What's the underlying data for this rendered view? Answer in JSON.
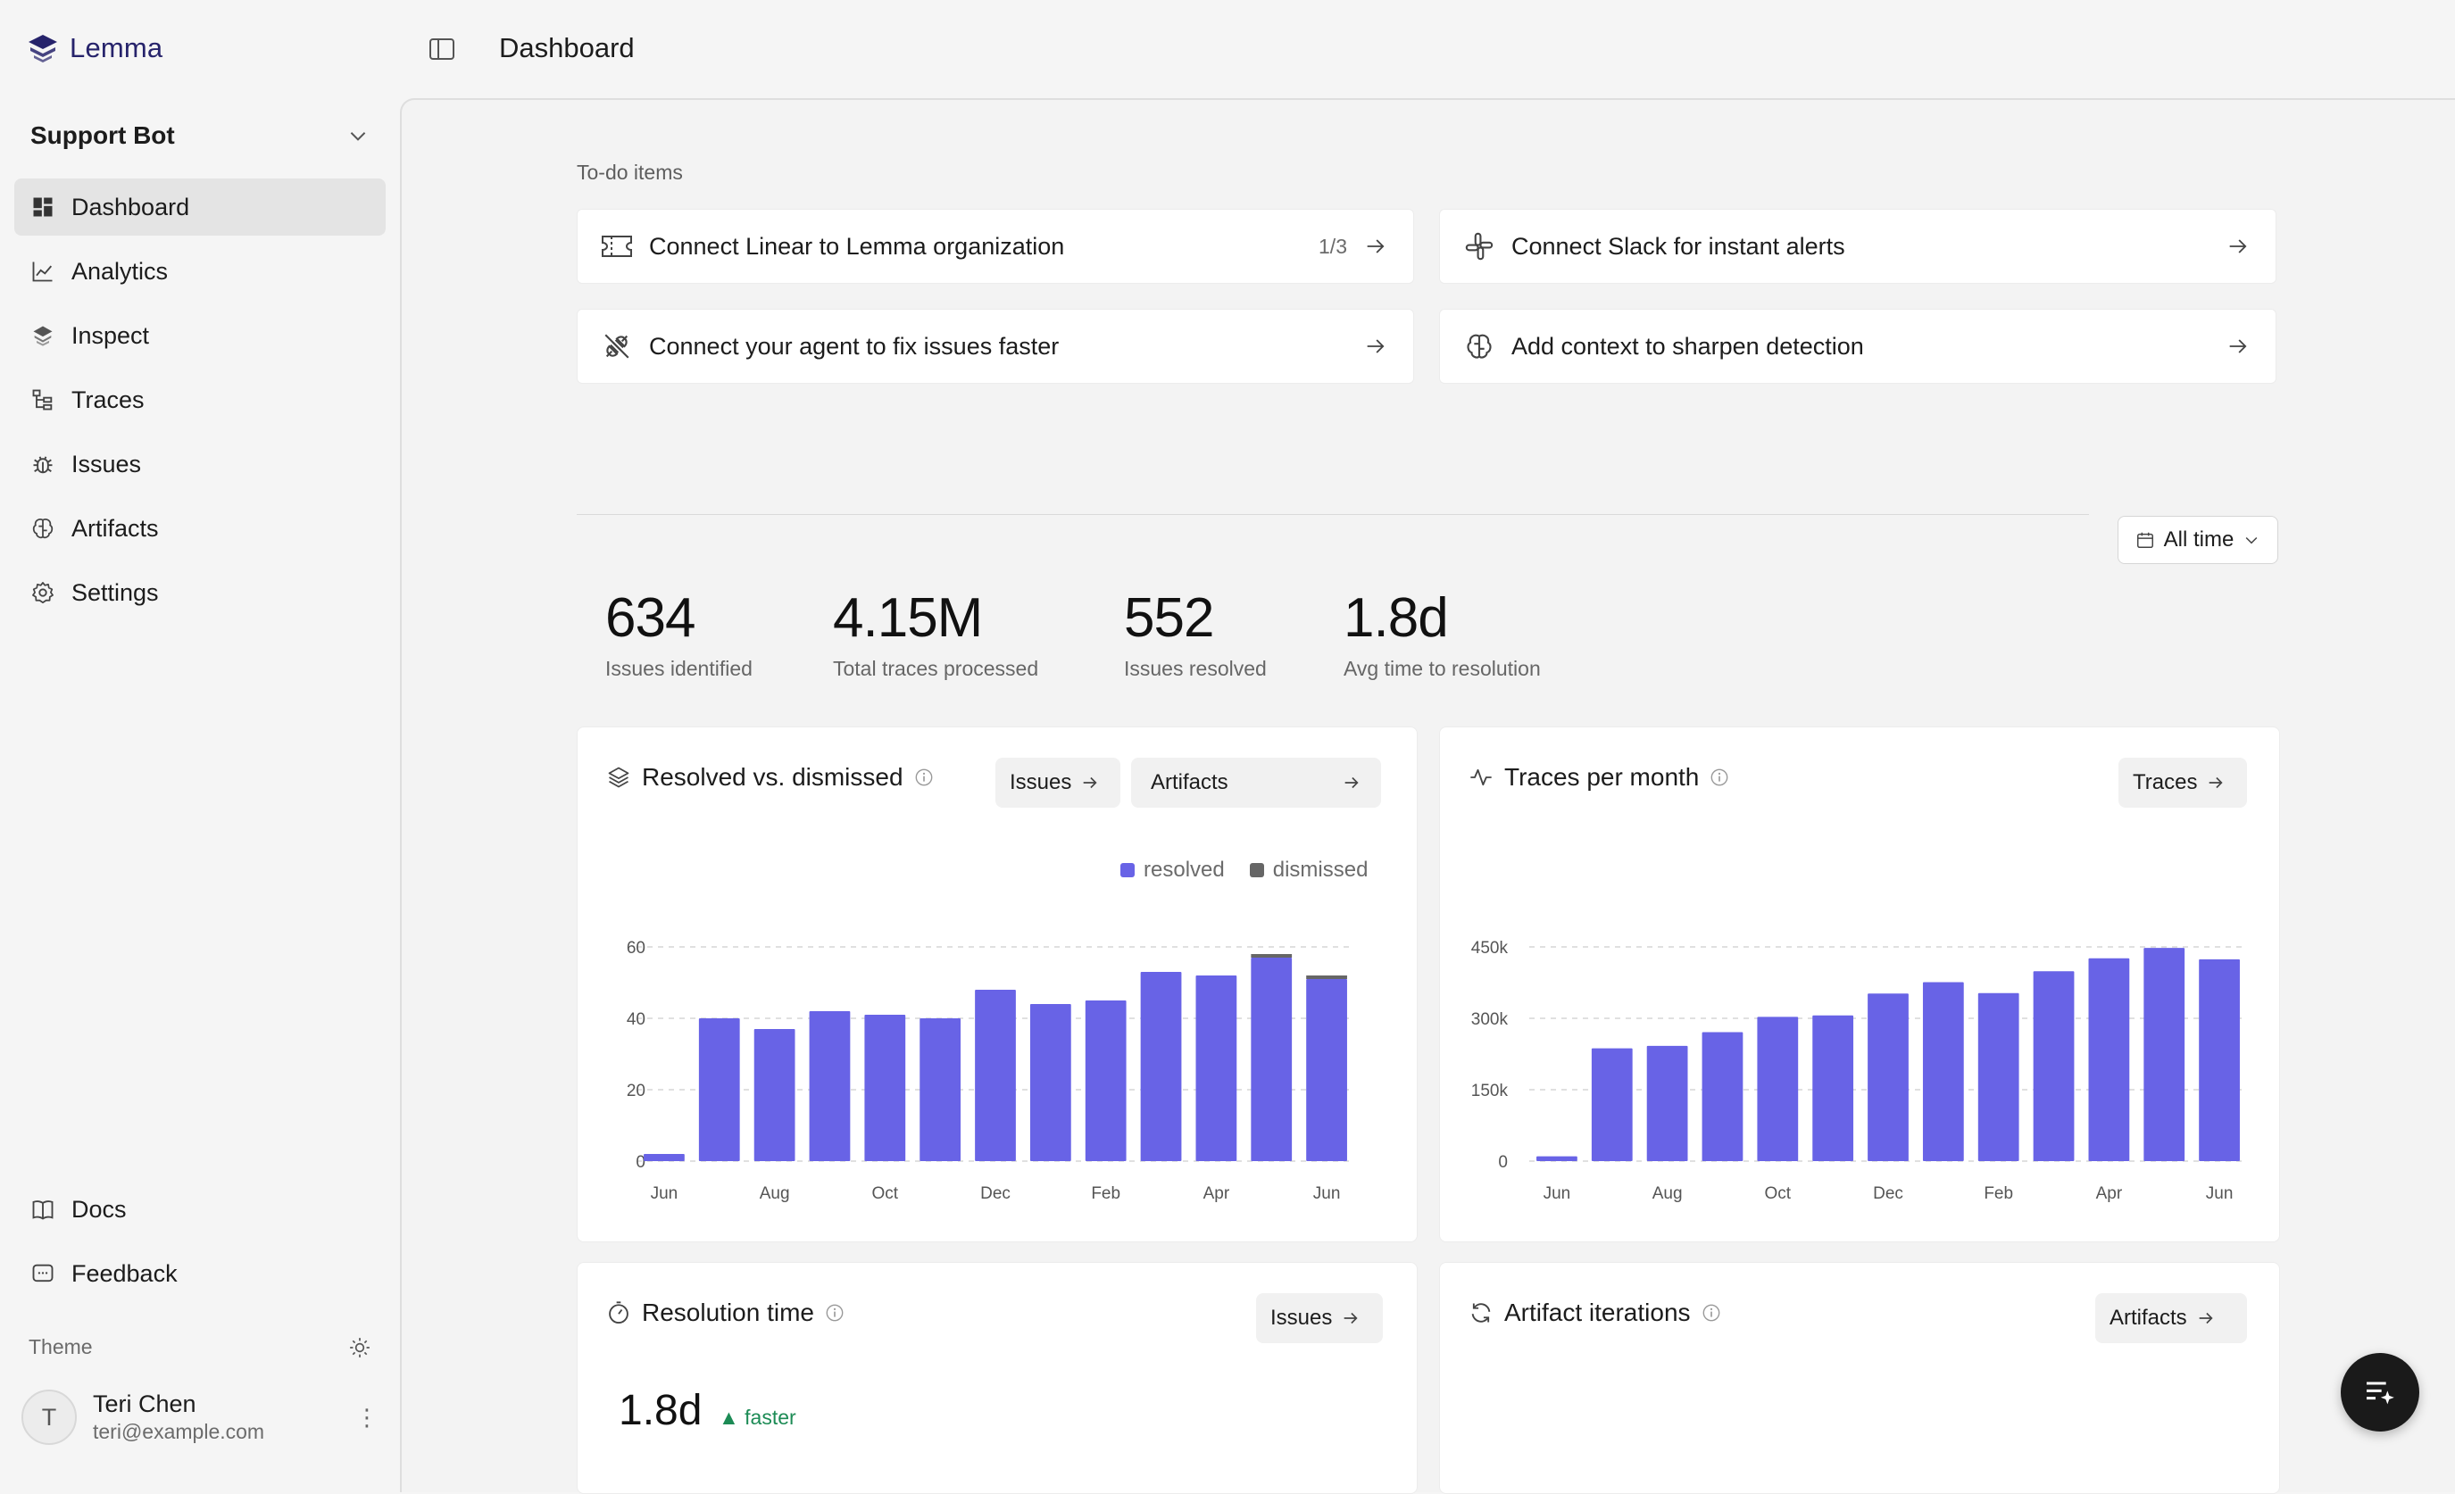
{
  "brand": {
    "name": "Lemma"
  },
  "project": {
    "name": "Support Bot"
  },
  "nav": {
    "items": [
      {
        "label": "Dashboard",
        "icon": "dashboard-icon",
        "active": true
      },
      {
        "label": "Analytics",
        "icon": "line-chart-icon"
      },
      {
        "label": "Inspect",
        "icon": "layers-icon"
      },
      {
        "label": "Traces",
        "icon": "tree-icon"
      },
      {
        "label": "Issues",
        "icon": "bug-icon"
      },
      {
        "label": "Artifacts",
        "icon": "brain-icon"
      },
      {
        "label": "Settings",
        "icon": "gear-icon"
      }
    ],
    "bottom": [
      {
        "label": "Docs",
        "icon": "book-icon"
      },
      {
        "label": "Feedback",
        "icon": "message-icon"
      }
    ]
  },
  "theme": {
    "label": "Theme"
  },
  "user": {
    "initial": "T",
    "name": "Teri Chen",
    "email": "teri@example.com"
  },
  "header": {
    "title": "Dashboard"
  },
  "todo": {
    "label": "To-do items",
    "items": [
      {
        "label": "Connect Linear to Lemma organization",
        "count": "1/3",
        "icon": "ticket-icon"
      },
      {
        "label": "Connect Slack for instant alerts",
        "count": "",
        "icon": "slack-icon"
      },
      {
        "label": "Connect your agent to fix issues faster",
        "count": "",
        "icon": "plug-icon"
      },
      {
        "label": "Add context to sharpen detection",
        "count": "",
        "icon": "brain-icon"
      }
    ]
  },
  "range": {
    "label": "All time"
  },
  "stats": [
    {
      "value": "634",
      "label": "Issues identified"
    },
    {
      "value": "4.15M",
      "label": "Total traces processed"
    },
    {
      "value": "552",
      "label": "Issues resolved"
    },
    {
      "value": "1.8d",
      "label": "Avg time to resolution"
    }
  ],
  "cards": {
    "resolved": {
      "title": "Resolved vs. dismissed",
      "btn1": "Issues",
      "btn2": "Artifacts"
    },
    "traces": {
      "title": "Traces per month",
      "btn1": "Traces"
    },
    "resolution": {
      "title": "Resolution time",
      "btn1": "Issues",
      "value": "1.8d",
      "delta": "▲ faster"
    },
    "iterations": {
      "title": "Artifact iterations",
      "btn1": "Artifacts"
    }
  },
  "colors": {
    "accent": "#6863e6",
    "dismissed": "#666666",
    "positive": "#1c8b55"
  },
  "chart_data": [
    {
      "type": "bar",
      "stacked": true,
      "categories": [
        "Jun",
        "Jul",
        "Aug",
        "Sep",
        "Oct",
        "Nov",
        "Dec",
        "Jan",
        "Feb",
        "Mar",
        "Apr",
        "May",
        "Jun"
      ],
      "x_tick_labels": [
        "Jun",
        "",
        "Aug",
        "",
        "Oct",
        "",
        "Dec",
        "",
        "Feb",
        "",
        "Apr",
        "",
        "Jun"
      ],
      "series": [
        {
          "name": "resolved",
          "values": [
            2,
            40,
            37,
            42,
            41,
            40,
            48,
            44,
            45,
            53,
            52,
            57,
            51
          ]
        },
        {
          "name": "dismissed",
          "values": [
            0,
            0,
            0,
            0,
            0,
            0,
            0,
            0,
            0,
            0,
            0,
            1,
            1
          ]
        }
      ],
      "ylim": [
        0,
        60
      ],
      "yticks": [
        0,
        20,
        40,
        60
      ],
      "ytick_labels": [
        "0",
        "20",
        "40",
        "60"
      ],
      "legend": "top-right",
      "grid": true
    },
    {
      "type": "bar",
      "categories": [
        "Jun",
        "Jul",
        "Aug",
        "Sep",
        "Oct",
        "Nov",
        "Dec",
        "Jan",
        "Feb",
        "Mar",
        "Apr",
        "May",
        "Jun"
      ],
      "x_tick_labels": [
        "Jun",
        "",
        "Aug",
        "",
        "Oct",
        "",
        "Dec",
        "",
        "Feb",
        "",
        "Apr",
        "",
        "Jun"
      ],
      "series": [
        {
          "values": [
            10000,
            237000,
            242000,
            271000,
            303000,
            306000,
            352000,
            376000,
            353000,
            399000,
            426000,
            448000,
            424000
          ]
        }
      ],
      "ylim": [
        0,
        450000
      ],
      "yticks": [
        0,
        150000,
        300000,
        450000
      ],
      "ytick_labels": [
        "0",
        "150k",
        "300k",
        "450k"
      ],
      "grid": true
    }
  ]
}
